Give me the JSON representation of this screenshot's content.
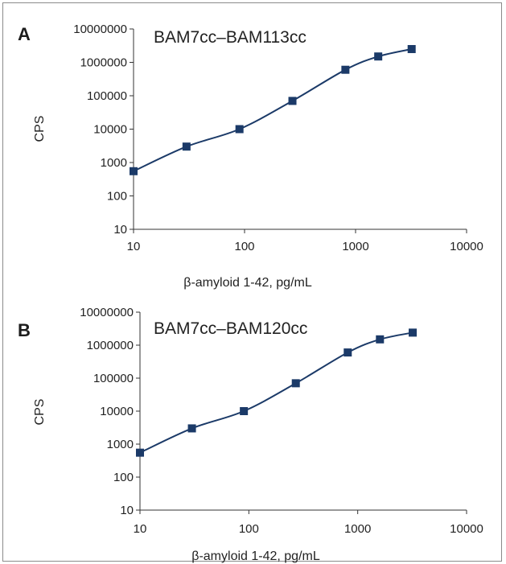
{
  "chart_data": [
    {
      "type": "line",
      "panel_label": "A",
      "title": "BAM7cc–BAM113cc",
      "xlabel": "β-amyloid 1-42, pg/mL",
      "ylabel": "CPS",
      "xscale": "log",
      "yscale": "log",
      "xlim": [
        10,
        10000
      ],
      "ylim": [
        10,
        10000000
      ],
      "x_ticks": [
        "10",
        "100",
        "1000",
        "10000"
      ],
      "y_ticks": [
        "10",
        "100",
        "1000",
        "10000",
        "100000",
        "1000000",
        "10000000"
      ],
      "grid": false,
      "series": [
        {
          "color": "#1b3a68",
          "marker": "square",
          "x": [
            10,
            30,
            90,
            270,
            810,
            1600,
            3200
          ],
          "y": [
            550,
            3000,
            10000,
            70000,
            600000,
            1500000,
            2500000
          ]
        }
      ]
    },
    {
      "type": "line",
      "panel_label": "B",
      "title": "BAM7cc–BAM120cc",
      "xlabel": "β-amyloid 1-42, pg/mL",
      "ylabel": "CPS",
      "xscale": "log",
      "yscale": "log",
      "xlim": [
        10,
        10000
      ],
      "ylim": [
        10,
        10000000
      ],
      "x_ticks": [
        "10",
        "100",
        "1000",
        "10000"
      ],
      "y_ticks": [
        "10",
        "100",
        "1000",
        "10000",
        "100000",
        "1000000",
        "10000000"
      ],
      "grid": false,
      "series": [
        {
          "color": "#1b3a68",
          "marker": "square",
          "x": [
            10,
            30,
            90,
            270,
            810,
            1600,
            3200
          ],
          "y": [
            550,
            3000,
            10000,
            70000,
            600000,
            1500000,
            2400000
          ]
        }
      ]
    }
  ]
}
